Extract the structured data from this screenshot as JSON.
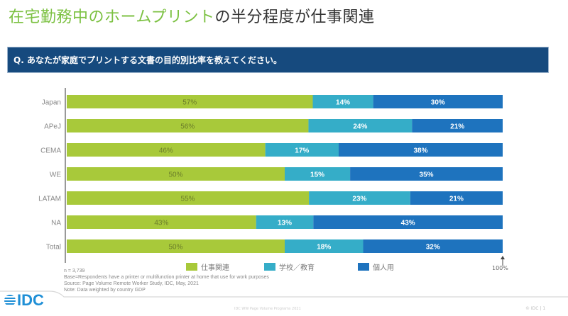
{
  "header": {
    "title_green": "在宅勤務中のホームプリント",
    "title_dark": "の半分程度が仕事関連"
  },
  "question": "Q. あなたが家庭でプリントする文書の目的別比率を教えてください。",
  "colors": {
    "work": "#a8c93a",
    "school": "#35adc8",
    "personal": "#1e73be",
    "header_bg": "#164a7e",
    "title_green": "#7cc142"
  },
  "chart_data": {
    "type": "bar",
    "orientation": "horizontal",
    "stacked": true,
    "title": "",
    "categories": [
      "Japan",
      "APeJ",
      "CEMA",
      "WE",
      "LATAM",
      "NA",
      "Total"
    ],
    "series": [
      {
        "name": "仕事関連",
        "color": "#a8c93a",
        "label_color": "#6b7d2a",
        "values": [
          57,
          56,
          46,
          50,
          55,
          43,
          50
        ]
      },
      {
        "name": "学校／教育",
        "color": "#35adc8",
        "label_color": "#ffffff",
        "values": [
          14,
          24,
          17,
          15,
          23,
          13,
          18
        ]
      },
      {
        "name": "個人用",
        "color": "#1e73be",
        "label_color": "#ffffff",
        "values": [
          30,
          21,
          38,
          35,
          21,
          43,
          32
        ]
      }
    ],
    "xlim": [
      0,
      100
    ],
    "value_suffix": "%",
    "end_marker_label": "100%",
    "legend_position": "bottom",
    "grid": false
  },
  "footnotes": {
    "n": "n = 3,739",
    "base": "Base=Respondents have a printer or multifunction printer at home that use for work purposes",
    "source": "Source: Page Volume Remote Worker Study, IDC, May, 2021",
    "note": "Note: Data weighted by country GDP"
  },
  "footer": {
    "logo": "IDC",
    "center": "IDC WW Page Volume Programs 2021",
    "right": "© IDC | 1"
  }
}
